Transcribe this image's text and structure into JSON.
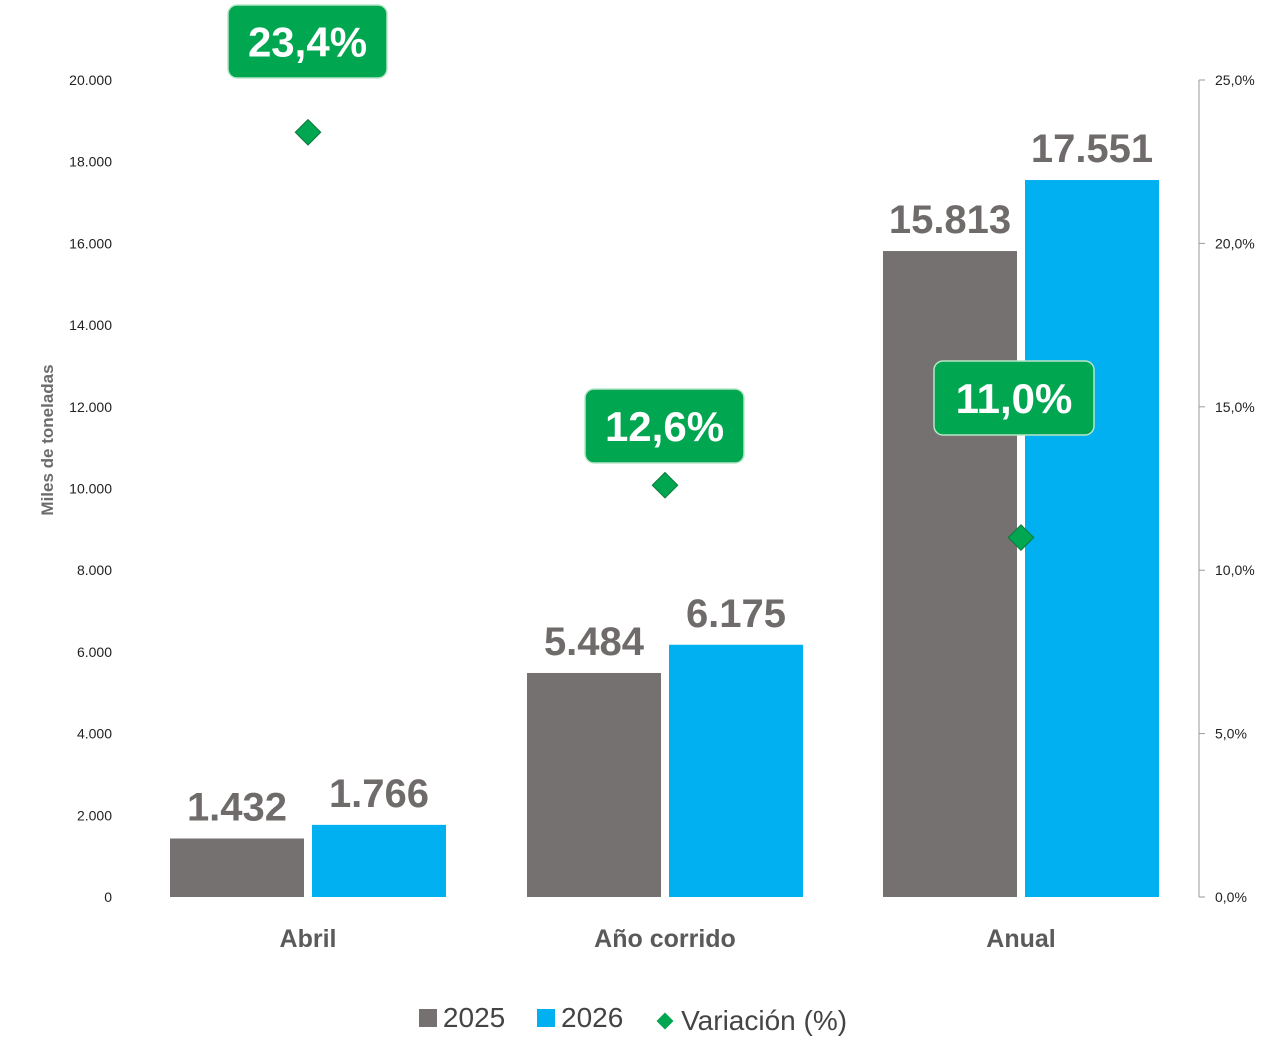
{
  "chart_data": {
    "type": "bar",
    "categories": [
      "Abril",
      "Año corrido",
      "Anual"
    ],
    "series": [
      {
        "name": "2025",
        "values": [
          1432,
          5484,
          15813
        ],
        "labels": [
          "1.432",
          "5.484",
          "15.813"
        ],
        "color": "#767171"
      },
      {
        "name": "2026",
        "values": [
          1766,
          6175,
          17551
        ],
        "labels": [
          "1.766",
          "6.175",
          "17.551"
        ],
        "color": "#00b0f0"
      }
    ],
    "variation": {
      "name": "Variación (%)",
      "values": [
        23.4,
        12.6,
        11.0
      ],
      "labels": [
        "23,4%",
        "12,6%",
        "11,0%"
      ],
      "color": "#00a650"
    },
    "ylabel": "Miles de toneladas",
    "ylim": [
      0,
      20000
    ],
    "yticks": [
      "0",
      "2.000",
      "4.000",
      "6.000",
      "8.000",
      "10.000",
      "12.000",
      "14.000",
      "16.000",
      "18.000",
      "20.000"
    ],
    "y2lim": [
      0,
      25
    ],
    "y2ticks": [
      "0,0%",
      "5,0%",
      "10,0%",
      "15,0%",
      "20,0%",
      "25,0%"
    ],
    "legend_position": "bottom",
    "grid": false
  }
}
